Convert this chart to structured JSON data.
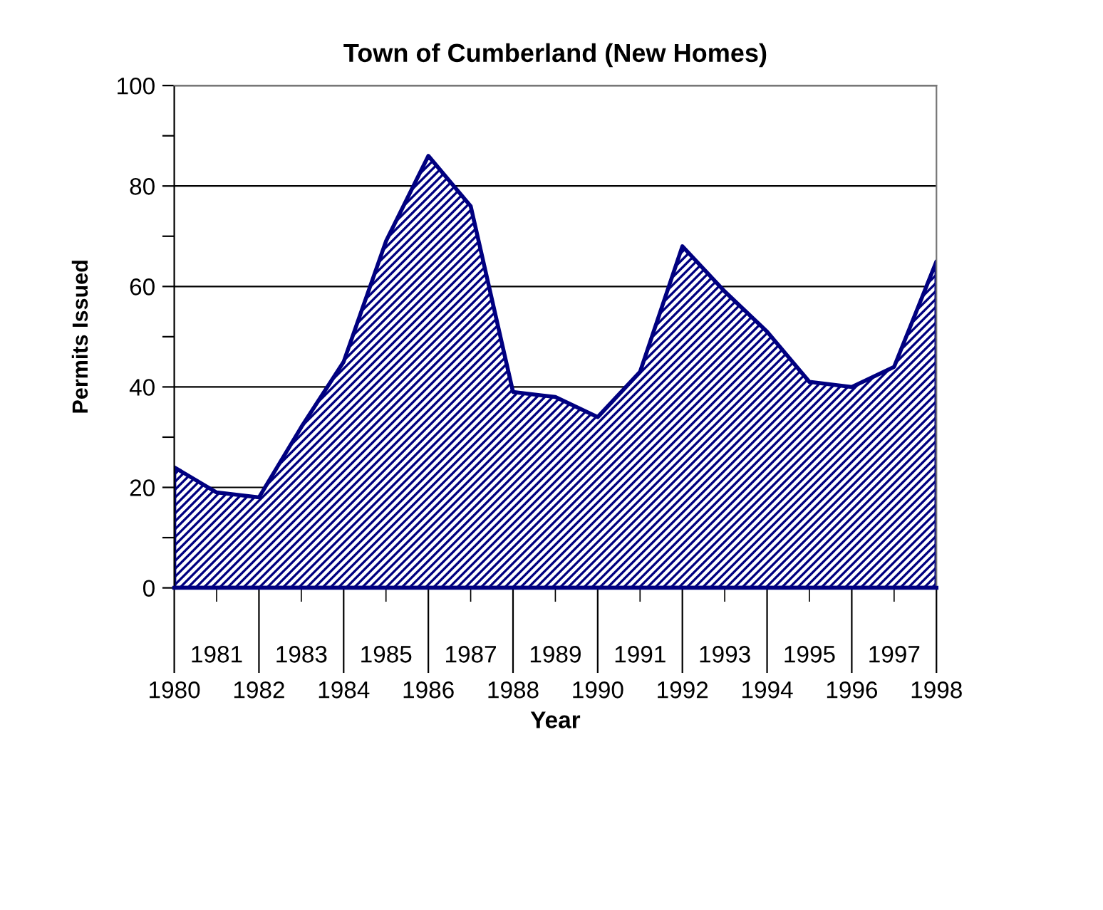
{
  "chart_data": {
    "type": "area",
    "title": "Town of Cumberland (New Homes)",
    "xlabel": "Year",
    "ylabel": "Permits Issued",
    "categories": [
      "1980",
      "1981",
      "1982",
      "1983",
      "1984",
      "1985",
      "1986",
      "1987",
      "1988",
      "1989",
      "1990",
      "1991",
      "1992",
      "1993",
      "1994",
      "1995",
      "1996",
      "1997",
      "1998"
    ],
    "series": [
      {
        "color": "#000080",
        "values": [
          24,
          19,
          18,
          32,
          45,
          69,
          86,
          76,
          39,
          38,
          34,
          43,
          68,
          59,
          51,
          41,
          40,
          44,
          65
        ]
      }
    ],
    "ylim": [
      0,
      100
    ],
    "yticks": [
      0,
      {
        "value": 10,
        "label": null
      },
      20,
      {
        "value": 30,
        "label": null
      },
      40,
      {
        "value": 50,
        "label": null
      },
      60,
      {
        "value": 70,
        "label": null
      },
      80,
      {
        "value": 90,
        "label": null
      },
      100
    ],
    "grid": "y"
  }
}
